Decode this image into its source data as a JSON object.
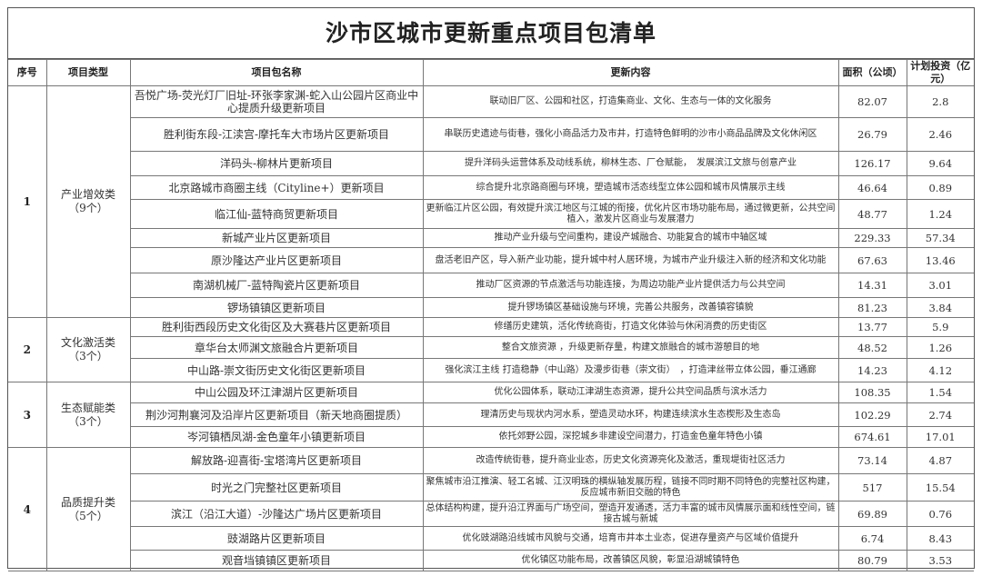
{
  "title": "沙市区城市更新重点项目包清单",
  "headers": [
    "序号",
    "项目类型",
    "项目包名称",
    "更新内容",
    "面积（公顷）",
    "计划投资（亿元）"
  ],
  "groups": [
    {
      "index": "1",
      "type": "产业增效类",
      "count": "（9个）",
      "rows": [
        {
          "name": "吾悦广场-荧光灯厂旧址-环张李家渊-蛇入山公园片区商业中心提质升级更新项目",
          "content": "联动旧厂区、公园和社区，打造集商业、文化、生态与一体的文化服务",
          "area": "82.07",
          "invest": "2.8"
        },
        {
          "name": "胜利街东段-江渎宫-摩托车大市场片区更新项目",
          "content": "串联历史遗迹与街巷，强化小商品活力及市井，打造特色鲜明的沙市小商品品牌及文化休闲区",
          "area": "26.79",
          "invest": "2.46"
        },
        {
          "name": "洋码头-柳林片更新项目",
          "content": "提升洋码头运营体系及动线系统，柳林生态、厂仓赋能，　发展滨江文旅与创意产业",
          "area": "126.17",
          "invest": "9.64"
        },
        {
          "name": "北京路城市商圈主线（Cityline+）更新项目",
          "content": "综合提升北京路商圈与环境，塑造城市活态线型立体公园和城市风情展示主线",
          "area": "46.64",
          "invest": "0.89"
        },
        {
          "name": "临江仙-蓝特商贸更新项目",
          "content": "更新临江片区公园，有效提升滨江地区与江城的衔接，优化片区市场功能布局，通过微更新，公共空间植入，激发片区商业与发展潜力",
          "area": "48.77",
          "invest": "1.24"
        },
        {
          "name": "新城产业片区更新项目",
          "content": "推动产业升级与空间重构，建设产城融合、功能复合的城市中轴区域",
          "area": "229.33",
          "invest": "57.34"
        },
        {
          "name": "原沙隆达产业片区更新项目",
          "content": "盘活老旧产区，导入新产业功能，提升城中村人居环境，为城市产业升级注入新的经济和文化功能",
          "area": "67.63",
          "invest": "13.46"
        },
        {
          "name": "南湖机械厂-蓝特陶瓷片区更新项目",
          "content": "推动厂区资源的节点激活与功能连接，为周边功能产业片提供活力与公共空间",
          "area": "14.31",
          "invest": "3.01"
        },
        {
          "name": "锣场镇镇区更新项目",
          "content": "提升锣场镇区基础设施与环境，完善公共服务，改善镇容镇貌",
          "area": "81.23",
          "invest": "3.84"
        }
      ]
    },
    {
      "index": "2",
      "type": "文化激活类",
      "count": "（3个）",
      "rows": [
        {
          "name": "胜利街西段历史文化街区及大赛巷片区更新项目",
          "content": "修缮历史建筑，活化传统商街，打造文化体验与休闲消费的历史街区",
          "area": "13.77",
          "invest": "5.9"
        },
        {
          "name": "章华台太师渊文旅融合片更新项目",
          "content": "整合文旅资源 ，升级更新存量，构建文旅融合的城市游憩目的地",
          "area": "48.52",
          "invest": "1.26"
        },
        {
          "name": "中山路-崇文街历史文化街区更新项目",
          "content": "强化滨江主线 打造稳静（中山路）及漫步街巷（崇文街）　，打造津丝带立体公园，垂江通廊",
          "area": "14.23",
          "invest": "4.12"
        }
      ]
    },
    {
      "index": "3",
      "type": "生态赋能类",
      "count": "（3个）",
      "rows": [
        {
          "name": "中山公园及环江津湖片区更新项目",
          "content": "优化公园体系，联动江津湖生态资源，提升公共空间品质与滨水活力",
          "area": "108.35",
          "invest": "1.54"
        },
        {
          "name": "荆沙河荆襄河及沿岸片区更新项目（新天地商圈提质）",
          "content": "理清历史与现状内河水系，塑造灵动水环，构建连续滨水生态楔形及生态岛",
          "area": "102.29",
          "invest": "2.74"
        },
        {
          "name": "岑河镇栖凤湖-金色童年小镇更新项目",
          "content": "依托郊野公园，深挖城乡非建设空间潜力，打造金色童年特色小镇",
          "area": "674.61",
          "invest": "17.01"
        }
      ]
    },
    {
      "index": "4",
      "type": "品质提升类",
      "count": "（5个）",
      "rows": [
        {
          "name": "解放路-迎喜街-宝塔湾片区更新项目",
          "content": "改造传统街巷，提升商业业态，历史文化资源亮化及激活，重现堤街社区活力",
          "area": "73.14",
          "invest": "4.87"
        },
        {
          "name": "时光之门完整社区更新项目",
          "content": "聚焦城市沿江推演、轻工名城、江汉明珠的横纵轴发展历程，链接不同时期不同特色的完整社区构建，反应城市新旧交融的特色",
          "area": "517",
          "invest": "15.54"
        },
        {
          "name": "滨江（沿江大道）-沙隆达广场片区更新项目",
          "content": "总体结构构建，提升沿江界面与广场空间，塑造开发通透，活力丰富的城市风情展示面和线性空间，链接古城与新城",
          "area": "69.89",
          "invest": "0.76"
        },
        {
          "name": "豉湖路片区更新项目",
          "content": "优化豉湖路沿线城市风貌与交通，培育市井本土业态，促进存量资产与区域价值提升",
          "area": "6.74",
          "invest": "8.43"
        },
        {
          "name": "观音垱镇镇区更新项目",
          "content": "优化镇区功能布局，改善镇区风貌，彰显沿湖城镇特色",
          "area": "80.79",
          "invest": "3.53"
        }
      ]
    }
  ]
}
